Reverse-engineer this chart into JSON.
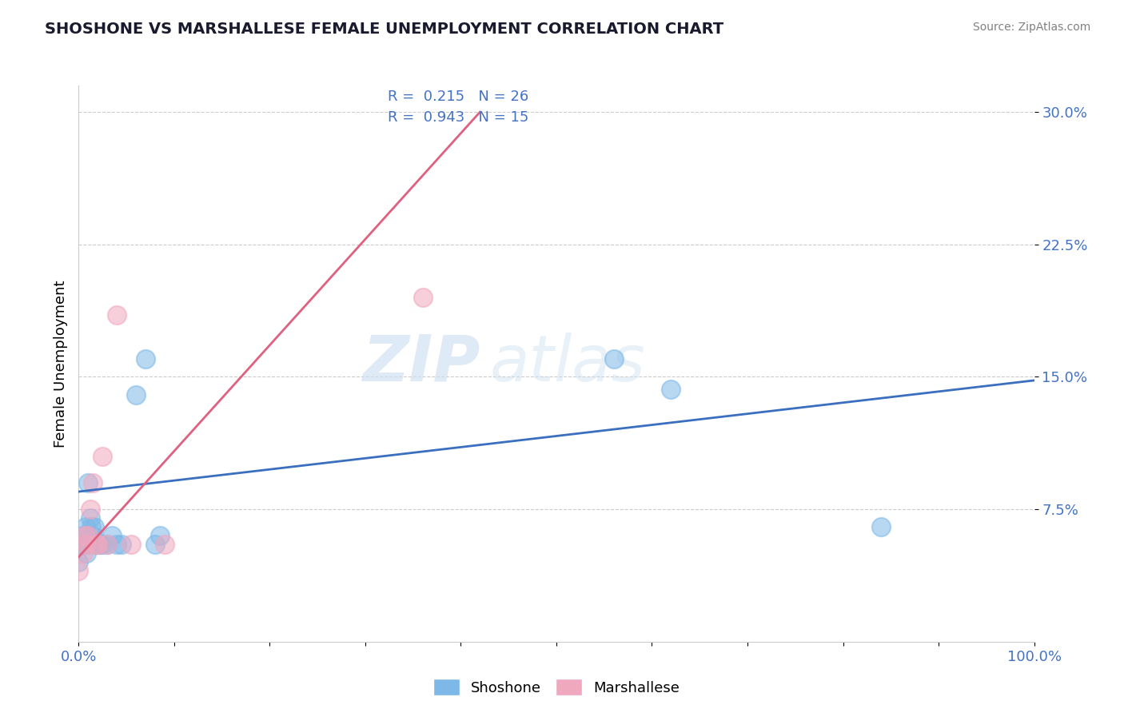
{
  "title": "SHOSHONE VS MARSHALLESE FEMALE UNEMPLOYMENT CORRELATION CHART",
  "source": "Source: ZipAtlas.com",
  "ylabel": "Female Unemployment",
  "xlim": [
    0.0,
    1.0
  ],
  "ylim": [
    0.0,
    0.315
  ],
  "yticks": [
    0.075,
    0.15,
    0.225,
    0.3
  ],
  "ytick_labels": [
    "7.5%",
    "15.0%",
    "22.5%",
    "30.0%"
  ],
  "background_color": "#ffffff",
  "grid_color": "#cccccc",
  "watermark_zip": "ZIP",
  "watermark_atlas": "atlas",
  "shoshone_color": "#7eb8e8",
  "marshallese_color": "#f0a8be",
  "shoshone_line_color": "#3a6fbf",
  "marshallese_line_color": "#e06080",
  "tick_color": "#4472c4",
  "legend_text_color": "#4472c4",
  "shoshone_scatter": [
    [
      0.0,
      0.045
    ],
    [
      0.005,
      0.055
    ],
    [
      0.005,
      0.06
    ],
    [
      0.007,
      0.065
    ],
    [
      0.008,
      0.05
    ],
    [
      0.009,
      0.055
    ],
    [
      0.01,
      0.09
    ],
    [
      0.012,
      0.07
    ],
    [
      0.013,
      0.065
    ],
    [
      0.015,
      0.06
    ],
    [
      0.016,
      0.065
    ],
    [
      0.018,
      0.055
    ],
    [
      0.02,
      0.055
    ],
    [
      0.022,
      0.055
    ],
    [
      0.025,
      0.055
    ],
    [
      0.03,
      0.055
    ],
    [
      0.035,
      0.06
    ],
    [
      0.04,
      0.055
    ],
    [
      0.045,
      0.055
    ],
    [
      0.06,
      0.14
    ],
    [
      0.07,
      0.16
    ],
    [
      0.08,
      0.055
    ],
    [
      0.085,
      0.06
    ],
    [
      0.56,
      0.16
    ],
    [
      0.62,
      0.143
    ],
    [
      0.84,
      0.065
    ]
  ],
  "marshallese_scatter": [
    [
      0.0,
      0.04
    ],
    [
      0.005,
      0.05
    ],
    [
      0.006,
      0.06
    ],
    [
      0.008,
      0.055
    ],
    [
      0.01,
      0.06
    ],
    [
      0.012,
      0.075
    ],
    [
      0.015,
      0.09
    ],
    [
      0.018,
      0.055
    ],
    [
      0.02,
      0.055
    ],
    [
      0.025,
      0.105
    ],
    [
      0.03,
      0.055
    ],
    [
      0.04,
      0.185
    ],
    [
      0.055,
      0.055
    ],
    [
      0.09,
      0.055
    ],
    [
      0.36,
      0.195
    ]
  ],
  "shoshone_line_x": [
    0.0,
    1.0
  ],
  "shoshone_line_y": [
    0.085,
    0.148
  ],
  "marshallese_line_x": [
    0.0,
    0.42
  ],
  "marshallese_line_y": [
    0.048,
    0.3
  ]
}
